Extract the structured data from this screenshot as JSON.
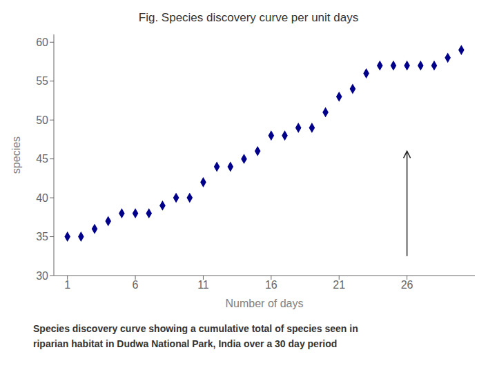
{
  "chart_data": {
    "type": "scatter",
    "title": "Fig. Species discovery curve per unit days",
    "x_label": "Number of days",
    "y_label": "species",
    "x": [
      1,
      2,
      3,
      4,
      5,
      6,
      7,
      8,
      9,
      10,
      11,
      12,
      13,
      14,
      15,
      16,
      17,
      18,
      19,
      20,
      21,
      22,
      23,
      24,
      25,
      26,
      27,
      28,
      29,
      30
    ],
    "values": [
      35,
      35,
      36,
      37,
      38,
      38,
      38,
      39,
      40,
      40,
      42,
      44,
      44,
      45,
      46,
      48,
      48,
      49,
      49,
      51,
      53,
      54,
      56,
      57,
      57,
      57,
      57,
      57,
      58,
      59
    ],
    "color": "#00008B",
    "marker": "diamond",
    "xlim": [
      0.0,
      31
    ],
    "ylim": [
      30,
      61
    ],
    "xticks": [
      1,
      6,
      11,
      16,
      21,
      26
    ],
    "yticks": [
      30,
      35,
      40,
      45,
      50,
      55,
      60
    ],
    "grid": false,
    "annotations": [
      {
        "type": "arrow",
        "x": 26,
        "y_start": 32.5,
        "y_end": 46
      }
    ],
    "caption": [
      "Species discovery curve showing a cumulative total of species seen in",
      "riparian habitat in Dudwa National Park, India over a 30 day period"
    ]
  }
}
